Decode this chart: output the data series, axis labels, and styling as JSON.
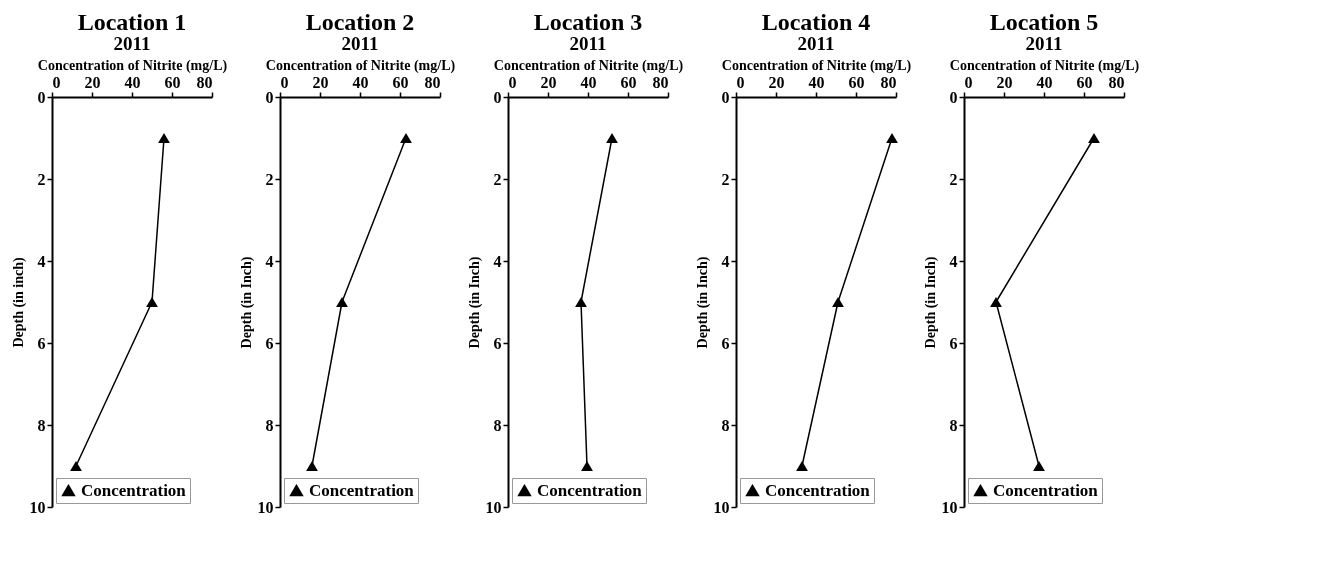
{
  "chart_data": [
    {
      "type": "line",
      "title": "Location 1",
      "subtitle": "2011",
      "xlabel": "Concentration of Nitrite (mg/L)",
      "ylabel": "Depth (in inch)",
      "xlim": [
        0,
        80
      ],
      "xticks": [
        0,
        20,
        40,
        60,
        80
      ],
      "ylim": [
        10,
        0
      ],
      "yticks": [
        0,
        2,
        4,
        6,
        8,
        10
      ],
      "marker": "triangle",
      "legend": "bottom",
      "grid": false,
      "series": [
        {
          "name": "Concentration",
          "color": "#000000",
          "x": [
            56,
            50,
            12
          ],
          "values": [
            1,
            5,
            9
          ]
        }
      ]
    },
    {
      "type": "line",
      "title": "Location 2",
      "subtitle": "2011",
      "xlabel": "Concentration of Nitrite (mg/L)",
      "ylabel": "Depth (in Inch)",
      "xlim": [
        0,
        80
      ],
      "xticks": [
        0,
        20,
        40,
        60,
        80
      ],
      "ylim": [
        10,
        0
      ],
      "yticks": [
        0,
        2,
        4,
        6,
        8,
        10
      ],
      "marker": "triangle",
      "legend": "bottom",
      "grid": false,
      "series": [
        {
          "name": "Concentration",
          "color": "#000000",
          "x": [
            63,
            31,
            16
          ],
          "values": [
            1,
            5,
            9
          ]
        }
      ]
    },
    {
      "type": "line",
      "title": "Location 3",
      "subtitle": "2011",
      "xlabel": "Concentration of Nitrite (mg/L)",
      "ylabel": "Depth (in Inch)",
      "xlim": [
        0,
        80
      ],
      "xticks": [
        0,
        20,
        40,
        60,
        80
      ],
      "ylim": [
        10,
        0
      ],
      "yticks": [
        0,
        2,
        4,
        6,
        8,
        10
      ],
      "marker": "triangle",
      "legend": "bottom",
      "grid": false,
      "series": [
        {
          "name": "Concentration",
          "color": "#000000",
          "x": [
            52,
            36.5,
            39.5
          ],
          "values": [
            1,
            5,
            9
          ]
        }
      ]
    },
    {
      "type": "line",
      "title": "Location 4",
      "subtitle": "2011",
      "xlabel": "Concentration of Nitrite (mg/L)",
      "ylabel": "Depth (in Inch)",
      "xlim": [
        0,
        80
      ],
      "xticks": [
        0,
        20,
        40,
        60,
        80
      ],
      "ylim": [
        10,
        0
      ],
      "yticks": [
        0,
        2,
        4,
        6,
        8,
        10
      ],
      "marker": "triangle",
      "legend": "bottom",
      "grid": false,
      "series": [
        {
          "name": "Concentration",
          "color": "#000000",
          "x": [
            78,
            51,
            33
          ],
          "values": [
            1,
            5,
            9
          ]
        }
      ]
    },
    {
      "type": "line",
      "title": "Location 5",
      "subtitle": "2011",
      "xlabel": "Concentration of Nitrite (mg/L)",
      "ylabel": "Depth (in Inch)",
      "xlim": [
        0,
        80
      ],
      "xticks": [
        0,
        20,
        40,
        60,
        80
      ],
      "ylim": [
        10,
        0
      ],
      "yticks": [
        0,
        2,
        4,
        6,
        8,
        10
      ],
      "marker": "triangle",
      "legend": "bottom",
      "grid": false,
      "series": [
        {
          "name": "Concentration",
          "color": "#000000",
          "x": [
            65,
            16,
            37.5
          ],
          "values": [
            1,
            5,
            9
          ]
        }
      ]
    }
  ]
}
